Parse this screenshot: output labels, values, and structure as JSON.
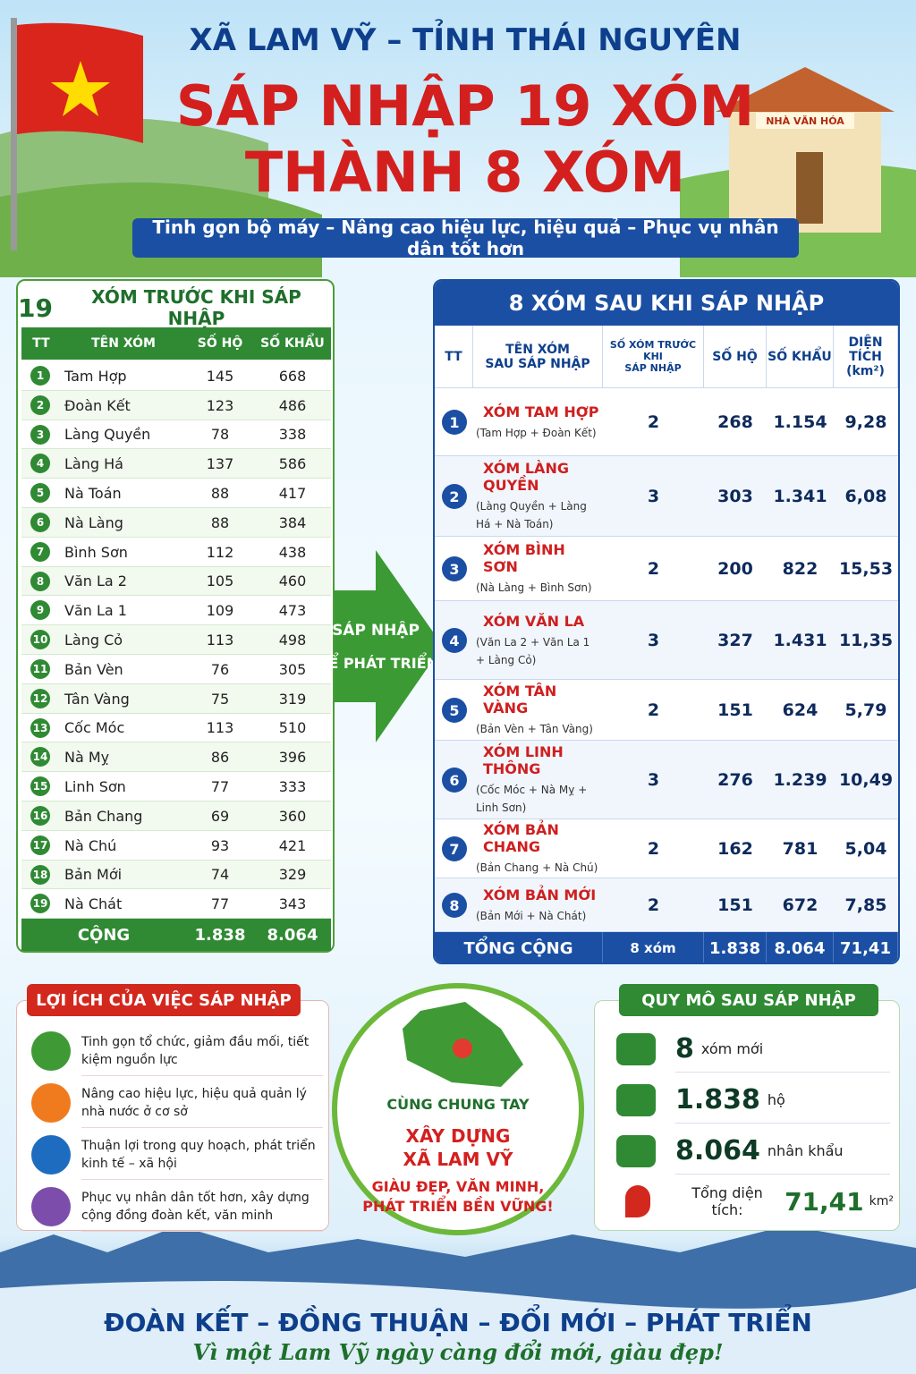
{
  "header": {
    "line1": "XÃ LAM VỸ – TỈNH THÁI NGUYÊN",
    "title1": "SÁP NHẬP 19 XÓM",
    "title2": "THÀNH 8 XÓM",
    "subtitle": "Tinh gọn bộ máy – Nâng cao hiệu lực, hiệu quả – Phục vụ nhân dân tốt hơn",
    "building_sign": "NHÀ VĂN HÓA"
  },
  "before": {
    "title_num": "19",
    "title": "XÓM TRƯỚC KHI SÁP NHẬP",
    "columns": [
      "TT",
      "TÊN XÓM",
      "SỐ HỘ",
      "SỐ KHẨU"
    ],
    "rows": [
      [
        "1",
        "Tam Hợp",
        "145",
        "668"
      ],
      [
        "2",
        "Đoàn Kết",
        "123",
        "486"
      ],
      [
        "3",
        "Làng Quyền",
        "78",
        "338"
      ],
      [
        "4",
        "Làng Há",
        "137",
        "586"
      ],
      [
        "5",
        "Nà Toán",
        "88",
        "417"
      ],
      [
        "6",
        "Nà Làng",
        "88",
        "384"
      ],
      [
        "7",
        "Bình Sơn",
        "112",
        "438"
      ],
      [
        "8",
        "Văn La 2",
        "105",
        "460"
      ],
      [
        "9",
        "Văn La 1",
        "109",
        "473"
      ],
      [
        "10",
        "Làng Cỏ",
        "113",
        "498"
      ],
      [
        "11",
        "Bản Vèn",
        "76",
        "305"
      ],
      [
        "12",
        "Tân Vàng",
        "75",
        "319"
      ],
      [
        "13",
        "Cốc Móc",
        "113",
        "510"
      ],
      [
        "14",
        "Nà Mỵ",
        "86",
        "396"
      ],
      [
        "15",
        "Linh Sơn",
        "77",
        "333"
      ],
      [
        "16",
        "Bản Chang",
        "69",
        "360"
      ],
      [
        "17",
        "Nà Chú",
        "93",
        "421"
      ],
      [
        "18",
        "Bản Mới",
        "74",
        "329"
      ],
      [
        "19",
        "Nà Chát",
        "77",
        "343"
      ]
    ],
    "total": [
      "CỘNG",
      "1.838",
      "8.064"
    ]
  },
  "arrow": {
    "line1": "SÁP NHẬP",
    "line2": "ĐỂ PHÁT TRIỂN"
  },
  "after": {
    "title": "8 XÓM SAU KHI SÁP NHẬP",
    "columns": [
      [
        "TT"
      ],
      [
        "TÊN XÓM",
        "SAU SÁP NHẬP"
      ],
      [
        "SỐ XÓM TRƯỚC KHI",
        "SÁP NHẬP"
      ],
      [
        "SỐ HỘ"
      ],
      [
        "SỐ KHẨU"
      ],
      [
        "DIỆN TÍCH",
        "(km²)"
      ]
    ],
    "rows": [
      {
        "tt": "1",
        "name": "XÓM TAM HỢP",
        "members": "(Tam Hợp + Đoàn Kết)",
        "count": "2",
        "households": "268",
        "people": "1.154",
        "area": "9,28"
      },
      {
        "tt": "2",
        "name": "XÓM LÀNG QUYỀN",
        "members": "(Làng Quyền + Làng Há + Nà Toán)",
        "count": "3",
        "households": "303",
        "people": "1.341",
        "area": "6,08"
      },
      {
        "tt": "3",
        "name": "XÓM BÌNH SƠN",
        "members": "(Nà Làng + Bình Sơn)",
        "count": "2",
        "households": "200",
        "people": "822",
        "area": "15,53"
      },
      {
        "tt": "4",
        "name": "XÓM VĂN LA",
        "members": "(Văn La 2 + Văn La 1 + Làng Cỏ)",
        "count": "3",
        "households": "327",
        "people": "1.431",
        "area": "11,35"
      },
      {
        "tt": "5",
        "name": "XÓM TÂN VÀNG",
        "members": "(Bản Vèn + Tân Vàng)",
        "count": "2",
        "households": "151",
        "people": "624",
        "area": "5,79"
      },
      {
        "tt": "6",
        "name": "XÓM LINH THÔNG",
        "members": "(Cốc Móc + Nà Mỵ + Linh Sơn)",
        "count": "3",
        "households": "276",
        "people": "1.239",
        "area": "10,49"
      },
      {
        "tt": "7",
        "name": "XÓM BẢN CHANG",
        "members": "(Bản Chang + Nà Chú)",
        "count": "2",
        "households": "162",
        "people": "781",
        "area": "5,04"
      },
      {
        "tt": "8",
        "name": "XÓM BẢN MỚI",
        "members": "(Bản Mới + Nà Chát)",
        "count": "2",
        "households": "151",
        "people": "672",
        "area": "7,85"
      }
    ],
    "total": [
      "TỔNG CỘNG",
      "8 xóm",
      "1.838",
      "8.064",
      "71,41"
    ]
  },
  "benefits": {
    "title": "LỢI ÍCH CỦA VIỆC SÁP NHẬP",
    "items": [
      "Tinh gọn tổ chức, giảm đầu mối, tiết kiệm nguồn lực",
      "Nâng cao hiệu lực, hiệu quả quản lý nhà nước ở cơ sở",
      "Thuận lợi trong quy hoạch, phát triển kinh tế – xã hội",
      "Phục vụ nhân dân tốt hơn, xây dựng cộng đồng đoàn kết, văn minh"
    ]
  },
  "circle": {
    "line1": "CÙNG CHUNG TAY",
    "line2": "XÂY DỰNG",
    "line3": "XÃ LAM VỸ",
    "line4": "GIÀU ĐẸP, VĂN MINH,",
    "line5": "PHÁT TRIỂN BỀN VỮNG!"
  },
  "scale": {
    "title": "QUY MÔ SAU SÁP NHẬP",
    "items": [
      {
        "value": "8",
        "text": "xóm mới"
      },
      {
        "value": "1.838",
        "text": "hộ"
      },
      {
        "value": "8.064",
        "text": "nhân khẩu"
      }
    ],
    "area_label": "Tổng diện tích:",
    "area_value": "71,41",
    "area_unit": "km²"
  },
  "footer": {
    "slogan": "ĐOÀN KẾT – ĐỒNG THUẬN – ĐỔI MỚI – PHÁT TRIỂN",
    "tagline": "Vì một Lam Vỹ ngày càng đổi mới, giàu đẹp!"
  }
}
